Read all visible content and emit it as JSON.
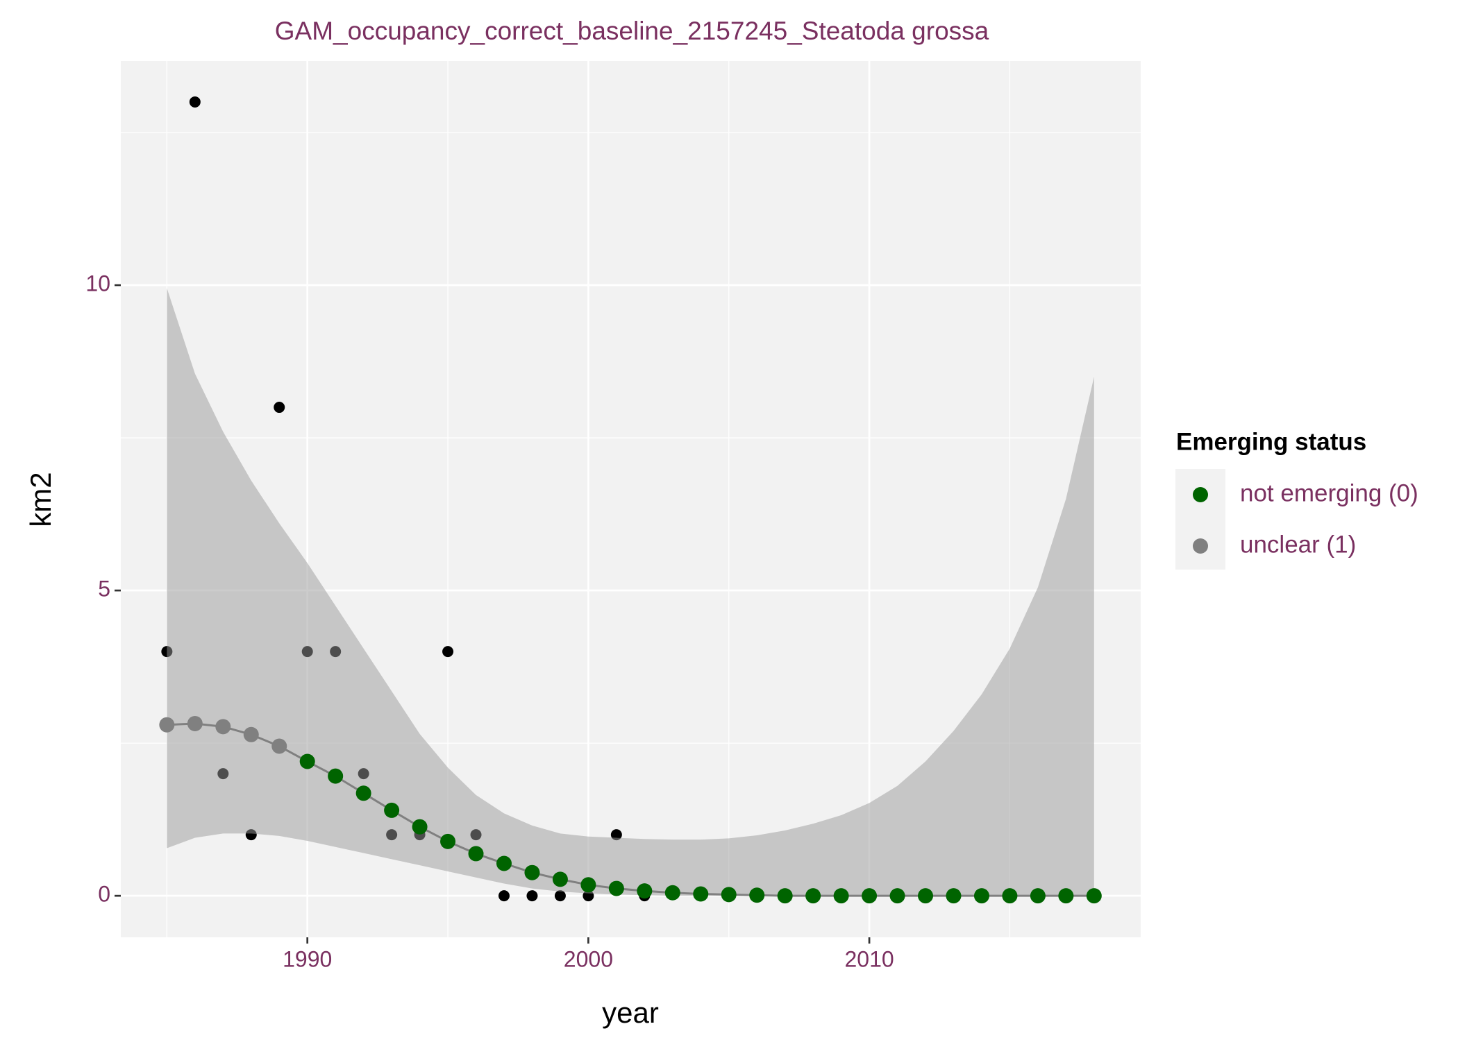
{
  "chart_data": {
    "type": "gam",
    "title": "GAM_occupancy_correct_baseline_2157245_Steatoda grossa",
    "x_label": "year",
    "y_label": "km2",
    "xlim": [
      1983.36,
      2019.66
    ],
    "ylim": [
      -0.68,
      13.67
    ],
    "xticks": [
      1990,
      2000,
      2010
    ],
    "yticks": [
      0,
      5,
      10
    ],
    "grid": true,
    "observed": {
      "color": "#000000",
      "x": [
        1985,
        1986,
        1987,
        1988,
        1989,
        1990,
        1991,
        1992,
        1993,
        1994,
        1995,
        1996,
        1997,
        1998,
        1999,
        2000,
        2001,
        2002
      ],
      "values": [
        4,
        13,
        2,
        1,
        8,
        4,
        4,
        2,
        1,
        1,
        4,
        1,
        0,
        0,
        0,
        0,
        1,
        0
      ]
    },
    "x": [
      1985,
      1986,
      1987,
      1988,
      1989,
      1990,
      1991,
      1992,
      1993,
      1994,
      1995,
      1996,
      1997,
      1998,
      1999,
      2000,
      2001,
      2002,
      2003,
      2004,
      2005,
      2006,
      2007,
      2008,
      2009,
      2010,
      2011,
      2012,
      2013,
      2014,
      2015,
      2016,
      2017,
      2018
    ],
    "ribbon": {
      "color": "#999999",
      "upper": [
        9.95,
        8.55,
        7.6,
        6.8,
        6.1,
        5.45,
        4.75,
        4.05,
        3.35,
        2.65,
        2.1,
        1.65,
        1.35,
        1.15,
        1.02,
        0.97,
        0.95,
        0.93,
        0.92,
        0.92,
        0.94,
        0.99,
        1.07,
        1.18,
        1.32,
        1.52,
        1.8,
        2.2,
        2.7,
        3.3,
        4.05,
        5.05,
        6.5,
        8.5
      ],
      "lower": [
        0.78,
        0.95,
        1.02,
        1.02,
        0.98,
        0.9,
        0.8,
        0.7,
        0.6,
        0.5,
        0.4,
        0.3,
        0.2,
        0.12,
        0.07,
        0.04,
        0.02,
        0.01,
        0,
        0,
        0,
        0,
        0,
        0,
        0,
        0,
        0,
        0,
        0,
        0,
        0,
        0,
        0,
        0
      ]
    },
    "trend": {
      "color": "#808080",
      "values": [
        2.8,
        2.82,
        2.77,
        2.64,
        2.45,
        2.2,
        1.96,
        1.68,
        1.4,
        1.13,
        0.89,
        0.69,
        0.53,
        0.38,
        0.27,
        0.18,
        0.12,
        0.08,
        0.05,
        0.03,
        0.02,
        0.01,
        0,
        0,
        0,
        0,
        0,
        0,
        0,
        0,
        0,
        0,
        0,
        0
      ]
    },
    "legend_title": "Emerging status",
    "series": [
      {
        "name": "not emerging (0)",
        "color": "#006400",
        "values": [
          null,
          null,
          null,
          null,
          null,
          2.2,
          1.96,
          1.68,
          1.4,
          1.13,
          0.89,
          0.69,
          0.53,
          0.38,
          0.27,
          0.18,
          0.12,
          0.08,
          0.05,
          0.03,
          0.02,
          0.01,
          0,
          0,
          0,
          0,
          0,
          0,
          0,
          0,
          0,
          0,
          0,
          0
        ]
      },
      {
        "name": "unclear (1)",
        "color": "#808080",
        "values": [
          2.8,
          2.82,
          2.77,
          2.64,
          2.45,
          null,
          null,
          null,
          null,
          null,
          null,
          null,
          null,
          null,
          null,
          null,
          null,
          null,
          null,
          null,
          null,
          null,
          null,
          null,
          null,
          null,
          null,
          null,
          null,
          null,
          null,
          null,
          null,
          null
        ]
      }
    ]
  }
}
